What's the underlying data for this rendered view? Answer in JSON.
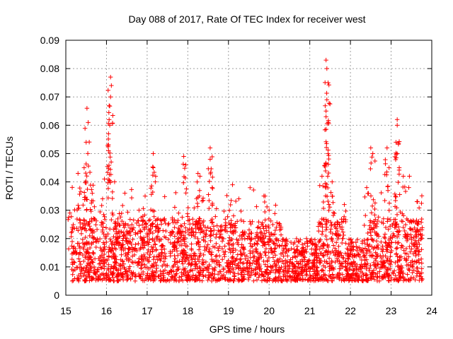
{
  "chart_data": {
    "type": "scatter",
    "title": "Day 088 of 2017, Rate Of TEC Index for receiver west",
    "xlabel": "GPS time / hours",
    "ylabel": "ROTI / TECUs",
    "xlim": [
      15,
      24
    ],
    "ylim": [
      0,
      0.09
    ],
    "x_ticks": [
      "15",
      "16",
      "17",
      "18",
      "19",
      "20",
      "21",
      "22",
      "23",
      "24"
    ],
    "y_ticks": [
      "0",
      "0.01",
      "0.02",
      "0.03",
      "0.04",
      "0.05",
      "0.06",
      "0.07",
      "0.08",
      "0.09"
    ],
    "grid": true,
    "marker": "+",
    "color": "#ff0000",
    "data_x_range": [
      15.13,
      23.77
    ],
    "typical_band": [
      0.005,
      0.025
    ],
    "peaks": [
      {
        "x": 15.1,
        "y": 0.029
      },
      {
        "x": 15.3,
        "y": 0.043
      },
      {
        "x": 15.45,
        "y": 0.045
      },
      {
        "x": 15.52,
        "y": 0.066
      },
      {
        "x": 15.55,
        "y": 0.061
      },
      {
        "x": 15.5,
        "y": 0.054
      },
      {
        "x": 15.65,
        "y": 0.036
      },
      {
        "x": 15.95,
        "y": 0.041
      },
      {
        "x": 16.05,
        "y": 0.057
      },
      {
        "x": 16.1,
        "y": 0.077
      },
      {
        "x": 16.12,
        "y": 0.074
      },
      {
        "x": 16.1,
        "y": 0.07
      },
      {
        "x": 16.08,
        "y": 0.06
      },
      {
        "x": 16.05,
        "y": 0.051
      },
      {
        "x": 16.2,
        "y": 0.04
      },
      {
        "x": 16.8,
        "y": 0.03
      },
      {
        "x": 16.95,
        "y": 0.035
      },
      {
        "x": 17.15,
        "y": 0.05
      },
      {
        "x": 17.15,
        "y": 0.045
      },
      {
        "x": 17.2,
        "y": 0.04
      },
      {
        "x": 17.9,
        "y": 0.049
      },
      {
        "x": 17.95,
        "y": 0.046
      },
      {
        "x": 18.25,
        "y": 0.043
      },
      {
        "x": 18.3,
        "y": 0.042
      },
      {
        "x": 18.55,
        "y": 0.052
      },
      {
        "x": 18.55,
        "y": 0.048
      },
      {
        "x": 18.6,
        "y": 0.038
      },
      {
        "x": 19.1,
        "y": 0.039
      },
      {
        "x": 19.9,
        "y": 0.035
      },
      {
        "x": 20.0,
        "y": 0.03
      },
      {
        "x": 21.4,
        "y": 0.083
      },
      {
        "x": 21.42,
        "y": 0.08
      },
      {
        "x": 21.45,
        "y": 0.075
      },
      {
        "x": 21.42,
        "y": 0.069
      },
      {
        "x": 21.4,
        "y": 0.065
      },
      {
        "x": 21.4,
        "y": 0.063
      },
      {
        "x": 21.45,
        "y": 0.05
      },
      {
        "x": 21.3,
        "y": 0.042
      },
      {
        "x": 21.55,
        "y": 0.04
      },
      {
        "x": 21.85,
        "y": 0.032
      },
      {
        "x": 22.5,
        "y": 0.052
      },
      {
        "x": 22.55,
        "y": 0.05
      },
      {
        "x": 22.4,
        "y": 0.038
      },
      {
        "x": 22.9,
        "y": 0.052
      },
      {
        "x": 22.95,
        "y": 0.045
      },
      {
        "x": 23.15,
        "y": 0.062
      },
      {
        "x": 23.15,
        "y": 0.06
      },
      {
        "x": 23.12,
        "y": 0.054
      },
      {
        "x": 23.2,
        "y": 0.045
      },
      {
        "x": 23.3,
        "y": 0.042
      },
      {
        "x": 23.45,
        "y": 0.042
      },
      {
        "x": 23.65,
        "y": 0.033
      }
    ]
  }
}
